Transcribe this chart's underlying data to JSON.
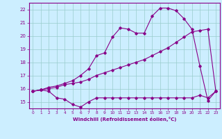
{
  "xlabel": "Windchill (Refroidissement éolien,°C)",
  "bg_color": "#cceeff",
  "grid_color": "#99cccc",
  "line_color": "#880088",
  "xlim": [
    -0.5,
    23.5
  ],
  "ylim": [
    14.5,
    22.5
  ],
  "yticks": [
    15,
    16,
    17,
    18,
    19,
    20,
    21,
    22
  ],
  "xticks": [
    0,
    1,
    2,
    3,
    4,
    5,
    6,
    7,
    8,
    9,
    10,
    11,
    12,
    13,
    14,
    15,
    16,
    17,
    18,
    19,
    20,
    21,
    22,
    23
  ],
  "line1_x": [
    0,
    1,
    2,
    3,
    4,
    5,
    6,
    7,
    8,
    9,
    10,
    11,
    12,
    13,
    14,
    15,
    16,
    17,
    18,
    19,
    20,
    21,
    22,
    23
  ],
  "line1_y": [
    15.8,
    15.9,
    15.8,
    15.3,
    15.2,
    14.8,
    14.6,
    15.0,
    15.3,
    15.3,
    15.3,
    15.3,
    15.3,
    15.3,
    15.3,
    15.3,
    15.3,
    15.3,
    15.3,
    15.3,
    15.3,
    15.5,
    15.3,
    15.8
  ],
  "line2_x": [
    0,
    1,
    2,
    3,
    4,
    5,
    6,
    7,
    8,
    9,
    10,
    11,
    12,
    13,
    14,
    15,
    16,
    17,
    18,
    19,
    20,
    21,
    22,
    23
  ],
  "line2_y": [
    15.8,
    15.9,
    16.0,
    16.1,
    16.3,
    16.4,
    16.5,
    16.7,
    17.0,
    17.2,
    17.4,
    17.6,
    17.8,
    18.0,
    18.2,
    18.5,
    18.8,
    19.1,
    19.5,
    19.9,
    20.3,
    20.4,
    20.5,
    15.8
  ],
  "line3_x": [
    0,
    1,
    2,
    3,
    4,
    5,
    6,
    7,
    8,
    9,
    10,
    11,
    12,
    13,
    14,
    15,
    16,
    17,
    18,
    19,
    20,
    21,
    22,
    23
  ],
  "line3_y": [
    15.8,
    15.9,
    16.1,
    16.2,
    16.4,
    16.6,
    17.0,
    17.5,
    18.5,
    18.7,
    19.9,
    20.6,
    20.5,
    20.2,
    20.2,
    21.5,
    22.1,
    22.1,
    21.9,
    21.3,
    20.5,
    17.7,
    15.1,
    15.8
  ]
}
